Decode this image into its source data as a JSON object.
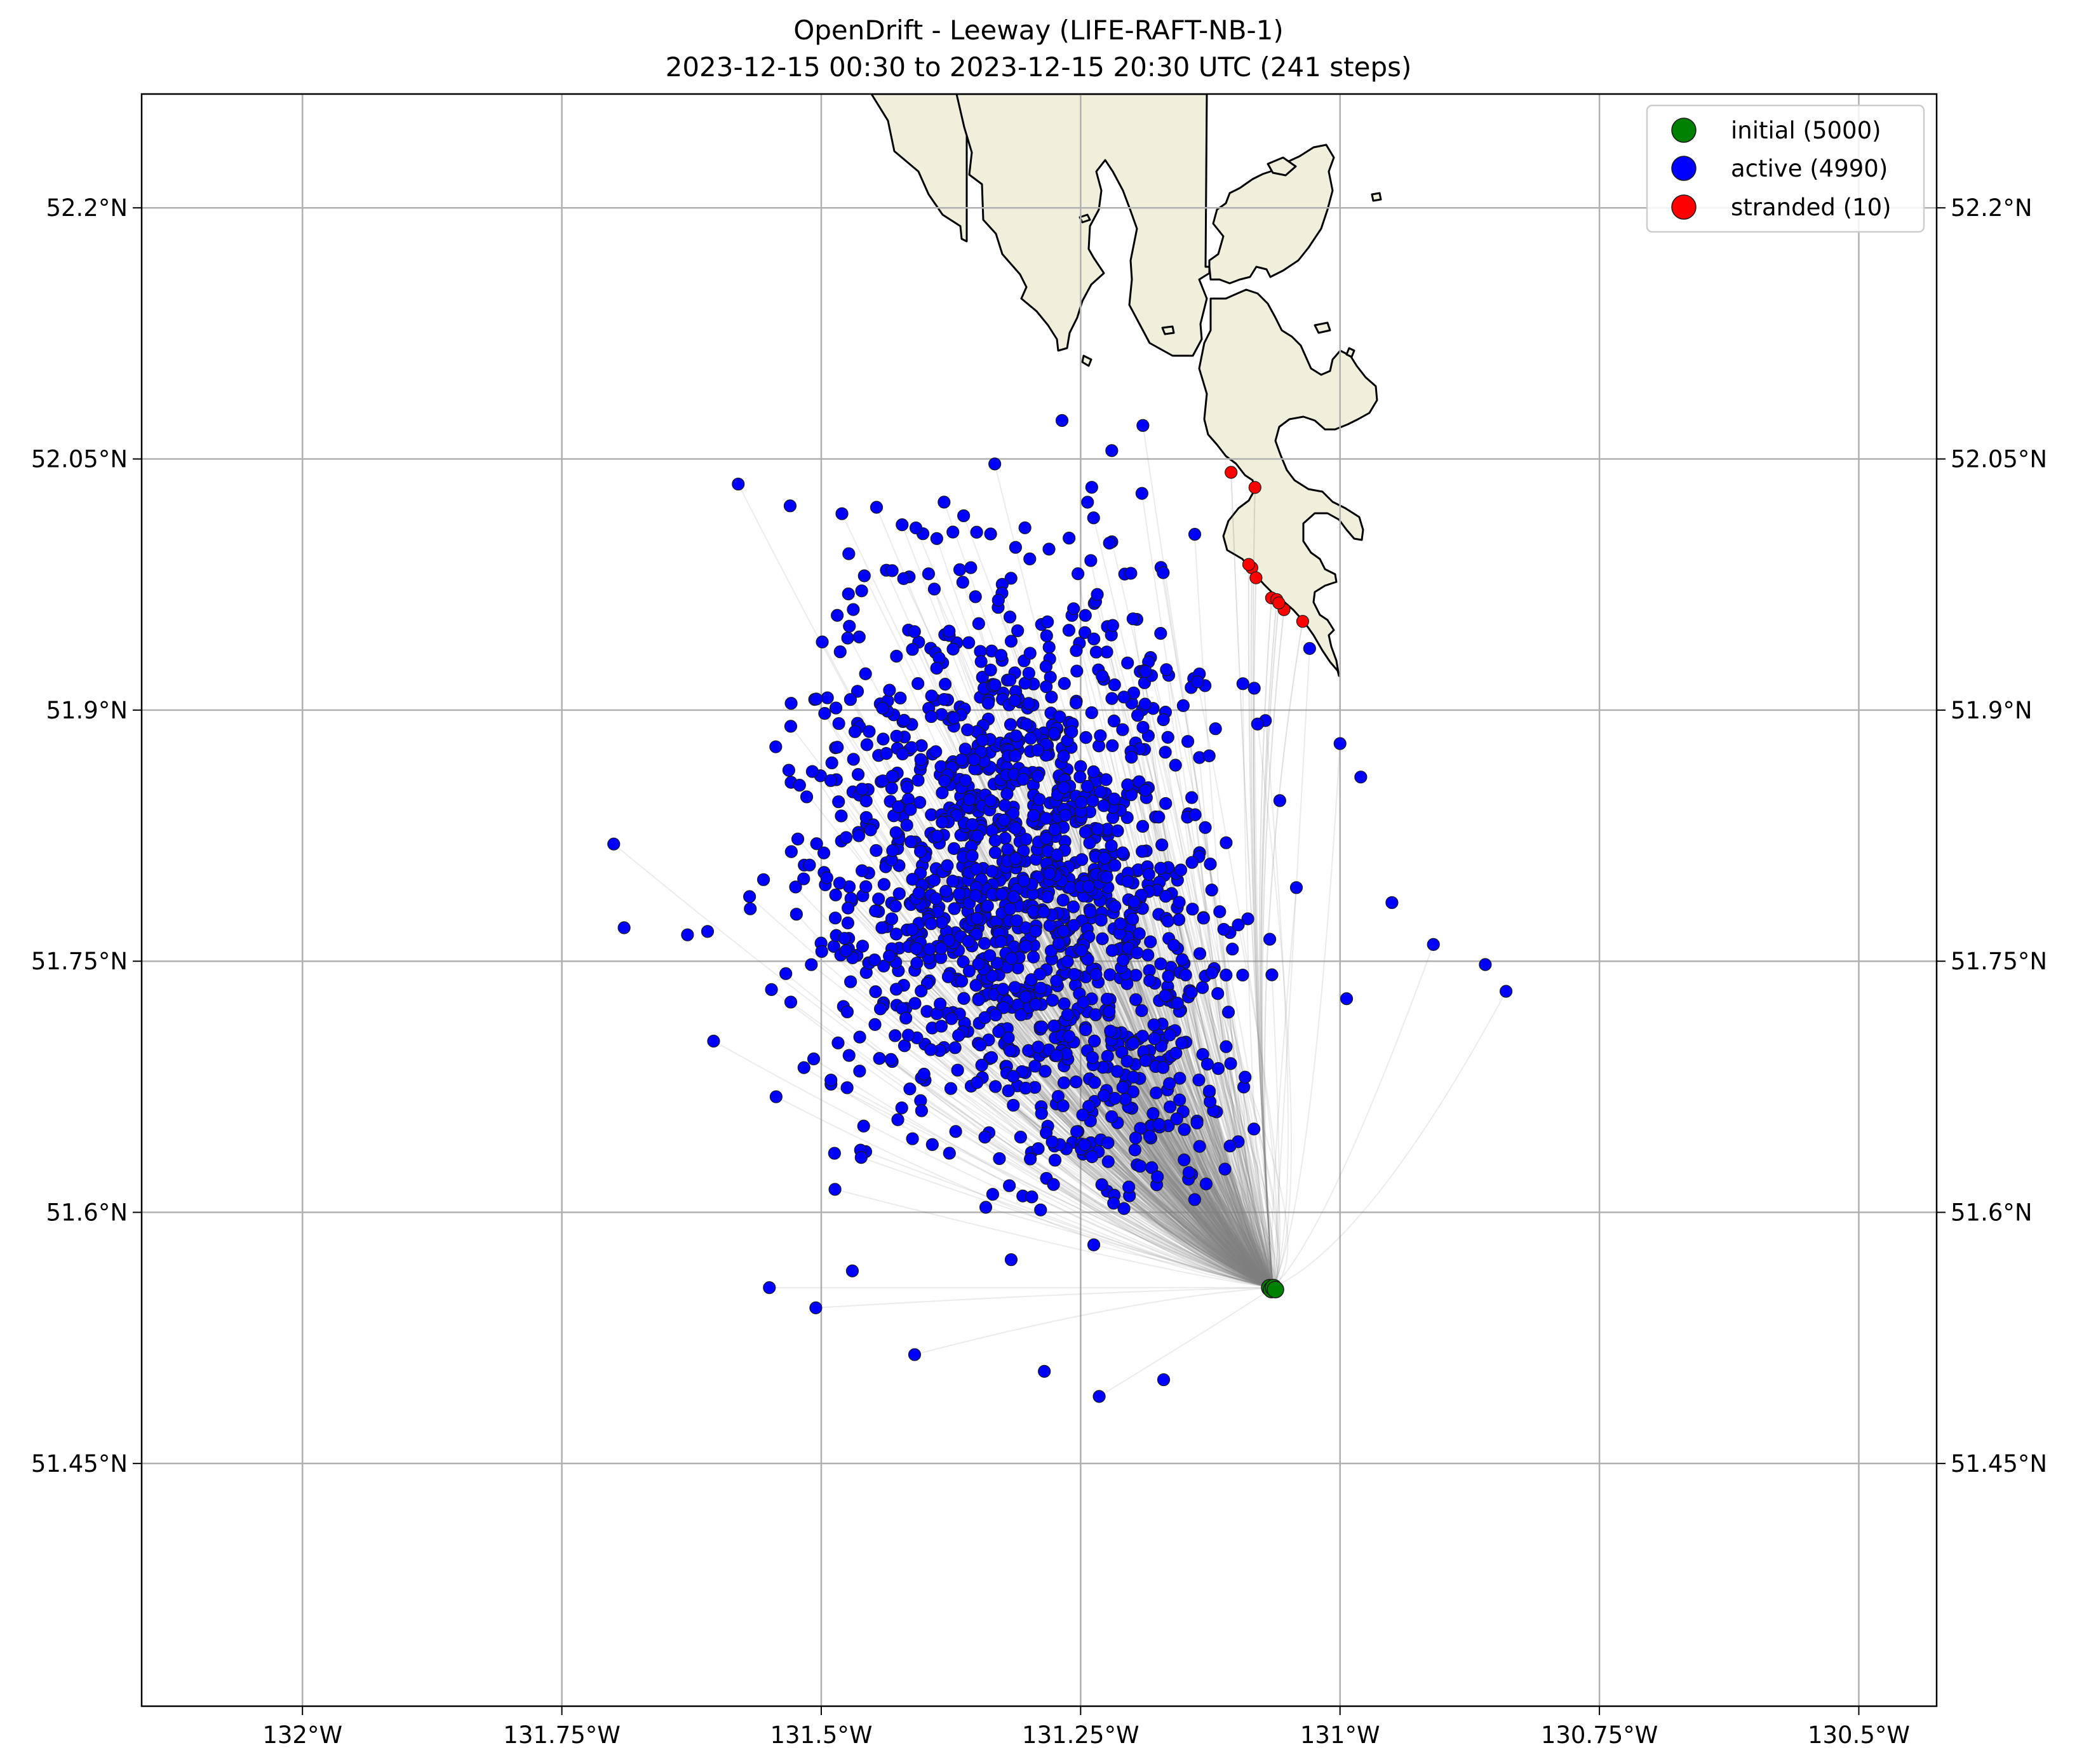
{
  "chart_data": {
    "type": "scatter",
    "title": "OpenDrift - Leeway (LIFE-RAFT-NB-1)",
    "subtitle": "2023-12-15 00:30 to 2023-12-15 20:30 UTC (241 steps)",
    "xlim": [
      -132.155,
      -130.425
    ],
    "ylim": [
      51.305,
      52.268
    ],
    "x_ticks": [
      -132.0,
      -131.75,
      -131.5,
      -131.25,
      -131.0,
      -130.75,
      -130.5
    ],
    "x_tick_labels": [
      "132°W",
      "131.75°W",
      "131.5°W",
      "131.25°W",
      "131°W",
      "130.75°W",
      "130.5°W"
    ],
    "y_ticks": [
      51.45,
      51.6,
      51.75,
      51.9,
      52.05,
      52.2
    ],
    "y_tick_labels": [
      "51.45°N",
      "51.6°N",
      "51.75°N",
      "51.9°N",
      "52.05°N",
      "52.2°N"
    ],
    "grid": true,
    "legend_position": "top-right",
    "legend": [
      {
        "label": "initial (5000)",
        "color": "#008000"
      },
      {
        "label": "active (4990)",
        "color": "#0000ff"
      },
      {
        "label": "stranded (10)",
        "color": "#ff0000"
      }
    ],
    "colors": {
      "land": "#efefdb",
      "coastline": "#000000",
      "trajectory": "#808080",
      "grid": "#b0b0b0"
    },
    "initial_position": {
      "lon": -131.065,
      "lat": 51.555
    },
    "active_cloud": {
      "center_lon": -131.32,
      "center_lat": 51.81,
      "sd_lon": 0.095,
      "sd_lat": 0.085
    },
    "sample_active": [
      {
        "lon": -131.58,
        "lat": 52.035
      },
      {
        "lon": -131.53,
        "lat": 52.022
      },
      {
        "lon": -131.19,
        "lat": 52.07
      },
      {
        "lon": -130.95,
        "lat": 51.785
      },
      {
        "lon": -130.91,
        "lat": 51.76
      },
      {
        "lon": -130.86,
        "lat": 51.748
      },
      {
        "lon": -130.84,
        "lat": 51.732
      },
      {
        "lon": -131.17,
        "lat": 51.5
      },
      {
        "lon": -131.41,
        "lat": 51.515
      },
      {
        "lon": -131.285,
        "lat": 51.505
      },
      {
        "lon": -131.7,
        "lat": 51.82
      },
      {
        "lon": -131.69,
        "lat": 51.77
      },
      {
        "lon": -131.55,
        "lat": 51.555
      },
      {
        "lon": -131.47,
        "lat": 51.565
      },
      {
        "lon": -131.14,
        "lat": 52.005
      },
      {
        "lon": -131.22,
        "lat": 52.055
      },
      {
        "lon": -131.0,
        "lat": 51.88
      },
      {
        "lon": -130.98,
        "lat": 51.86
      }
    ],
    "stranded": [
      {
        "lon": -131.105,
        "lat": 52.042
      },
      {
        "lon": -131.082,
        "lat": 52.033
      },
      {
        "lon": -131.085,
        "lat": 51.985
      },
      {
        "lon": -131.081,
        "lat": 51.979
      },
      {
        "lon": -131.066,
        "lat": 51.967
      },
      {
        "lon": -131.061,
        "lat": 51.966
      },
      {
        "lon": -131.054,
        "lat": 51.96
      },
      {
        "lon": -131.036,
        "lat": 51.953
      },
      {
        "lon": -131.088,
        "lat": 51.987
      },
      {
        "lon": -131.059,
        "lat": 51.964
      }
    ]
  }
}
